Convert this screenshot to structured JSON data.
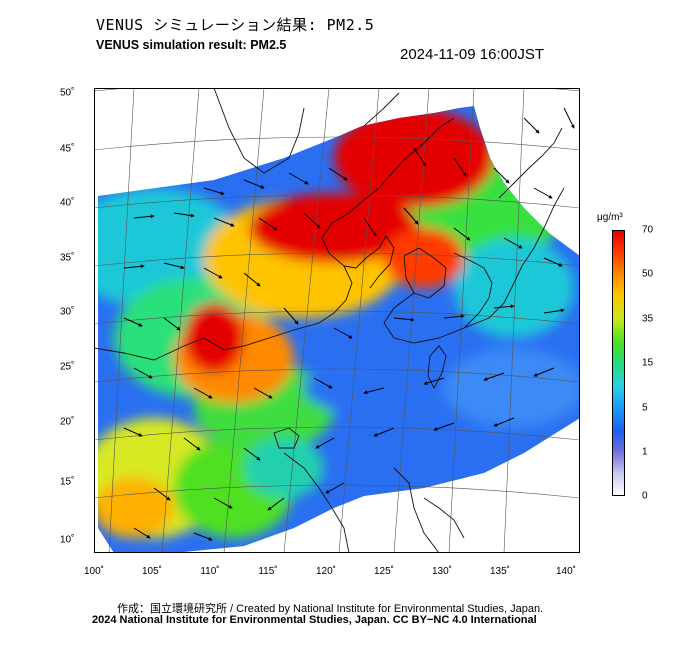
{
  "header": {
    "title_jp": "VENUS シミュレーション結果: PM2.5",
    "title_en": "VENUS simulation result: PM2.5",
    "timestamp": "2024-11-09 16:00JST"
  },
  "map": {
    "x_ticks": [
      "100˚",
      "105˚",
      "110˚",
      "115˚",
      "120˚",
      "125˚",
      "130˚",
      "135˚",
      "140˚"
    ],
    "y_ticks": [
      "50˚",
      "45˚",
      "40˚",
      "35˚",
      "30˚",
      "25˚",
      "20˚",
      "15˚",
      "10˚"
    ],
    "lon_range": [
      100,
      142
    ],
    "lat_range": [
      9,
      50
    ]
  },
  "colorbar": {
    "unit": "μg/m³",
    "labels": [
      "70",
      "50",
      "35",
      "15",
      "5",
      "1",
      "0"
    ],
    "colors": [
      "#e40000",
      "#ffc400",
      "#c6e81e",
      "#22dd7a",
      "#1a9cff",
      "#6e6ee0",
      "#ffffff"
    ]
  },
  "footer": {
    "credit_line1": "作成：国立環境研究所 / Created by National Institute for Environmental Studies, Japan.",
    "credit_line2": "2024 National Institute for Environmental Studies, Japan. CC BY−NC 4.0 International"
  }
}
